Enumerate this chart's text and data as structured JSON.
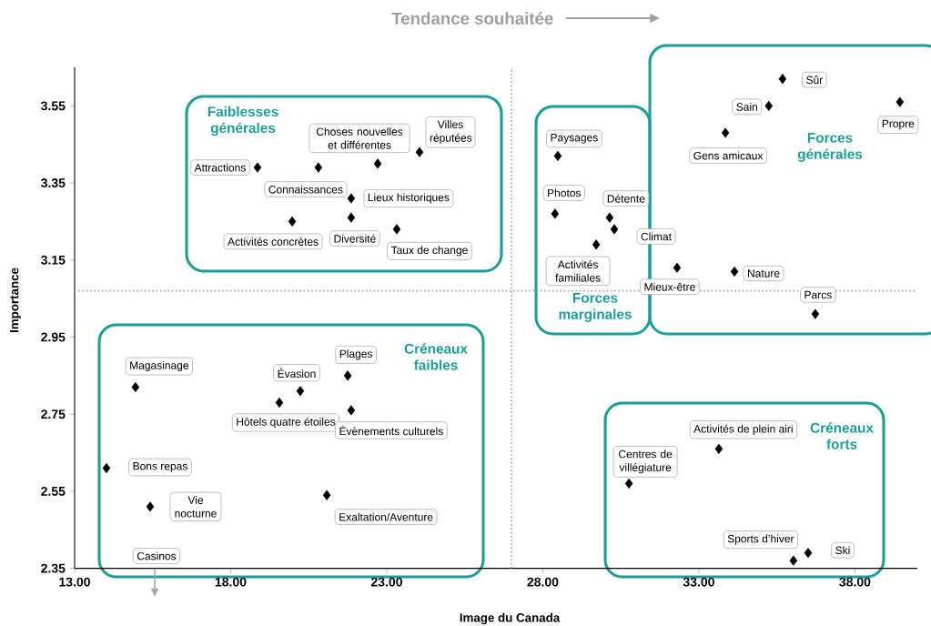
{
  "chart_data": {
    "type": "scatter",
    "title": "Tendance souhaitée",
    "xlabel": "Image du Canada",
    "ylabel": "Importance",
    "xlim": [
      13,
      40
    ],
    "ylim": [
      2.35,
      3.65
    ],
    "xticks": [
      {
        "value": 13,
        "label": "13.00"
      },
      {
        "value": 18,
        "label": "18.00"
      },
      {
        "value": 23,
        "label": "23.00"
      },
      {
        "value": 28,
        "label": "28.00"
      },
      {
        "value": 33,
        "label": "33.00"
      },
      {
        "value": 38,
        "label": "38.00"
      }
    ],
    "yticks": [
      2.35,
      2.55,
      2.75,
      2.95,
      3.15,
      3.35,
      3.55
    ],
    "marker": "diamond",
    "series": [
      {
        "color": "#000000",
        "x": [
          35.68,
          39.44,
          35.24,
          33.85,
          34.14,
          36.73,
          32.3,
          30.29,
          30.14,
          29.71,
          28.39,
          28.48,
          24.05,
          22.71,
          20.81,
          18.86,
          21.86,
          21.86,
          19.97,
          23.32,
          14.95,
          14.02,
          15.42,
          19.56,
          20.23,
          21.75,
          21.86,
          21.08,
          33.64,
          30.76,
          36.03,
          36.5
        ],
        "values": [
          3.62,
          3.56,
          3.55,
          3.48,
          3.12,
          3.01,
          3.13,
          3.23,
          3.26,
          3.19,
          3.27,
          3.42,
          3.43,
          3.4,
          3.39,
          3.39,
          3.31,
          3.26,
          3.25,
          3.23,
          2.82,
          2.61,
          2.51,
          2.78,
          2.81,
          2.85,
          2.76,
          2.54,
          2.66,
          2.57,
          2.37,
          2.39
        ]
      }
    ],
    "ref_lines": [
      {
        "axis": "x",
        "value": 27,
        "color": "#a6a6a6",
        "line_style": "dotted"
      },
      {
        "axis": "y",
        "value": 3.07,
        "color": "#a6a6a6",
        "line_style": "dotted"
      }
    ],
    "annotations": [
      {
        "text": "Sûr",
        "x": 35.68,
        "y": 3.62
      },
      {
        "text": "Propre",
        "x": 39.44,
        "y": 3.56
      },
      {
        "text": "Sain",
        "x": 35.24,
        "y": 3.55
      },
      {
        "text": "Gens amicaux",
        "x": 33.85,
        "y": 3.48
      },
      {
        "text": "Nature",
        "x": 34.14,
        "y": 3.12
      },
      {
        "text": "Parcs",
        "x": 36.73,
        "y": 3.01
      },
      {
        "text": "Mieux-être",
        "x": 32.3,
        "y": 3.13
      },
      {
        "text": "Climat",
        "x": 30.29,
        "y": 3.23
      },
      {
        "text": "Détente",
        "x": 30.14,
        "y": 3.26
      },
      {
        "text": "Activités familiales",
        "x": 29.71,
        "y": 3.19
      },
      {
        "text": "Photos",
        "x": 28.39,
        "y": 3.27
      },
      {
        "text": "Paysages",
        "x": 28.48,
        "y": 3.42
      },
      {
        "text": "Villes réputées",
        "x": 24.05,
        "y": 3.43
      },
      {
        "text": "Choses nouvelles et différentes",
        "x": 22.71,
        "y": 3.4
      },
      {
        "text": "Connaissances",
        "x": 20.81,
        "y": 3.39
      },
      {
        "text": "Attractions",
        "x": 18.86,
        "y": 3.39
      },
      {
        "text": "Lieux historiques",
        "x": 21.86,
        "y": 3.31
      },
      {
        "text": "Diversité",
        "x": 21.86,
        "y": 3.26
      },
      {
        "text": "Activités concrètes",
        "x": 19.97,
        "y": 3.25
      },
      {
        "text": "Taux de change",
        "x": 23.32,
        "y": 3.23
      },
      {
        "text": "Magasinage",
        "x": 14.95,
        "y": 2.82
      },
      {
        "text": "Bons repas",
        "x": 14.02,
        "y": 2.61
      },
      {
        "text": "Vie nocturne",
        "x": 15.42,
        "y": 2.51
      },
      {
        "text": "Hôtels quatre étoiles",
        "x": 19.56,
        "y": 2.78
      },
      {
        "text": "Évasion",
        "x": 20.23,
        "y": 2.81
      },
      {
        "text": "Plages",
        "x": 21.75,
        "y": 2.85
      },
      {
        "text": "Évènements culturels",
        "x": 21.86,
        "y": 2.76
      },
      {
        "text": "Exaltation/Aventure",
        "x": 21.08,
        "y": 2.54
      },
      {
        "text": "Activités de plein airi",
        "x": 33.64,
        "y": 2.66
      },
      {
        "text": "Centres de villégiature",
        "x": 30.76,
        "y": 2.57
      },
      {
        "text": "Sports d’hiver",
        "x": 36.03,
        "y": 2.37
      },
      {
        "text": "Ski",
        "x": 36.5,
        "y": 2.39
      },
      "Faiblesses générales",
      "Forces marginales",
      "Forces générales",
      "Créneaux faibles",
      "Créneaux forts",
      "Casinos"
    ]
  }
}
